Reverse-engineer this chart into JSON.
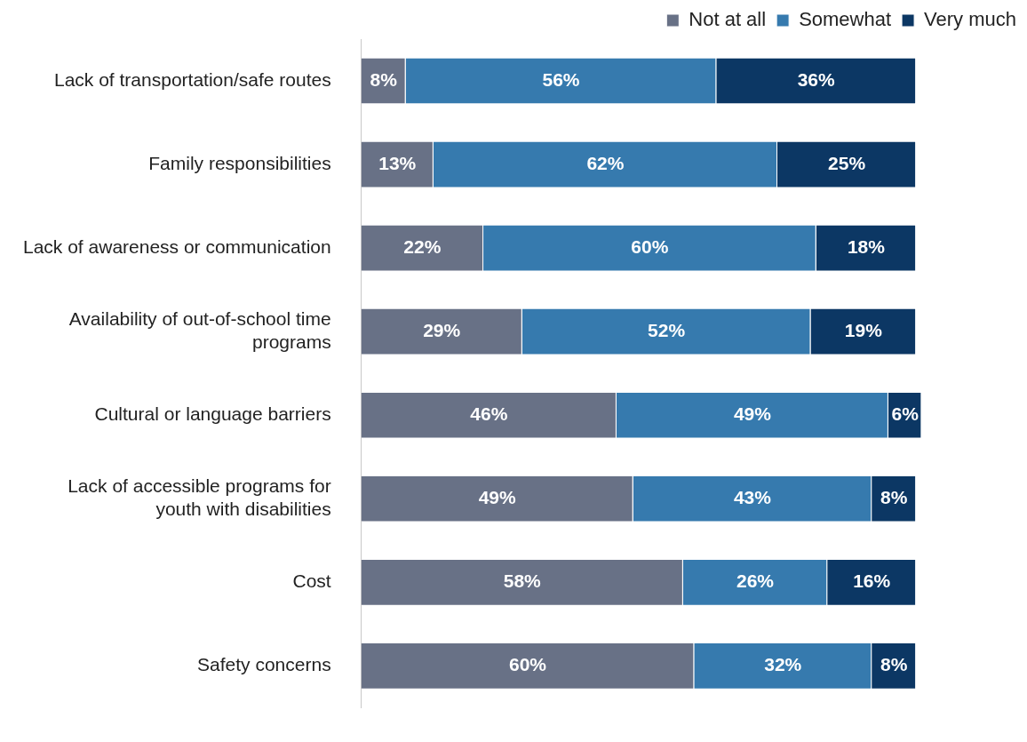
{
  "chart_data": {
    "type": "bar",
    "orientation": "horizontal",
    "stacked": true,
    "legend": "top",
    "tick_labels": "y",
    "categories": [
      "Lack of transportation/safe routes",
      "Family responsibilities",
      "Lack of awareness or communication",
      "Availability of out-of-school time programs",
      "Cultural or language barriers",
      "Lack of accessible programs for youth with disabilities",
      "Cost",
      "Safety concerns"
    ],
    "series": [
      {
        "name": "Not at all",
        "color": "#687186",
        "values": [
          8,
          13,
          22,
          29,
          46,
          49,
          58,
          60
        ],
        "value_labels": [
          "8%",
          "13%",
          "22%",
          "29%",
          "46%",
          "49%",
          "58%",
          "60%"
        ]
      },
      {
        "name": "Somewhat",
        "color": "#367aae",
        "values": [
          56,
          62,
          60,
          52,
          49,
          43,
          26,
          32
        ],
        "value_labels": [
          "56%",
          "62%",
          "60%",
          "52%",
          "49%",
          "43%",
          "26%",
          "32%"
        ]
      },
      {
        "name": "Very much",
        "color": "#0c3764",
        "values": [
          36,
          25,
          18,
          19,
          6,
          8,
          16,
          8
        ],
        "value_labels": [
          "36%",
          "25%",
          "18%",
          "19%",
          "6%",
          "8%",
          "16%",
          "8%"
        ]
      }
    ]
  }
}
